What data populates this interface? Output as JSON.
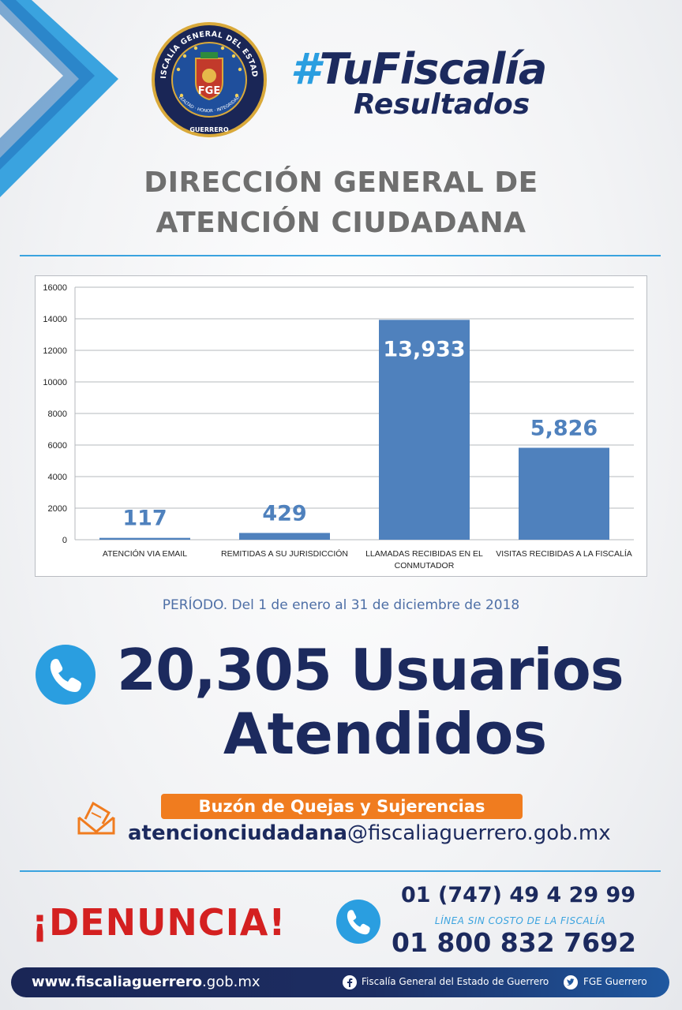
{
  "brand": {
    "seal_text_top": "FISCALÍA GENERAL DEL ESTADO",
    "seal_text_bottom": "GUERRERO",
    "seal_motto": "LEALTAD · HONOR · INTEGRIDAD",
    "seal_initials": "FGE",
    "hashtag_symbol": "#",
    "hashtag_word": "TuFiscalía",
    "subtitle": "Resultados"
  },
  "heading": {
    "line1": "DIRECCIÓN GENERAL DE",
    "line2": "ATENCIÓN CIUDADANA"
  },
  "chart_data": {
    "type": "bar",
    "categories": [
      [
        "ATENCIÓN VIA EMAIL"
      ],
      [
        "REMITIDAS A SU JURISDICCIÓN"
      ],
      [
        "LLAMADAS RECIBIDAS EN EL",
        "CONMUTADOR"
      ],
      [
        "VISITAS RECIBIDAS A LA FISCALÍA"
      ]
    ],
    "values": [
      117,
      429,
      13933,
      5826
    ],
    "data_labels": [
      "117",
      "429",
      "13,933",
      "5,826"
    ],
    "ylim": [
      0,
      16000
    ],
    "yticks": [
      0,
      2000,
      4000,
      6000,
      8000,
      10000,
      12000,
      14000,
      16000
    ],
    "grid": true,
    "bar_color": "#4f81bd",
    "label_color_outside": "#4f81bd",
    "label_color_inside": "#ffffff"
  },
  "period": "PERÍODO. Del 1 de enero al 31 de diciembre de 2018",
  "total": {
    "line1": "20,305 Usuarios",
    "line2": "Atendidos"
  },
  "complaints": {
    "label": "Buzón de Quejas y Sujerencias",
    "email_user": "atencionciudadana",
    "email_domain": "@fiscaliaguerrero.gob.mx"
  },
  "contact": {
    "denuncia": "¡DENUNCIA!",
    "phone1": "01 (747) 49 4 29 99",
    "caption": "LÍNEA SIN COSTO DE LA FISCALÍA",
    "phone2": "01 800 832 7692"
  },
  "footer": {
    "url_bold": "www.fiscaliaguerrero",
    "url_rest": ".gob.mx",
    "facebook": "Fiscalía General del Estado de Guerrero",
    "twitter": "FGE Guerrero"
  },
  "colors": {
    "navy": "#1c2a5e",
    "accent_blue": "#3aa3df",
    "orange": "#f07c1f",
    "red": "#d42020"
  }
}
